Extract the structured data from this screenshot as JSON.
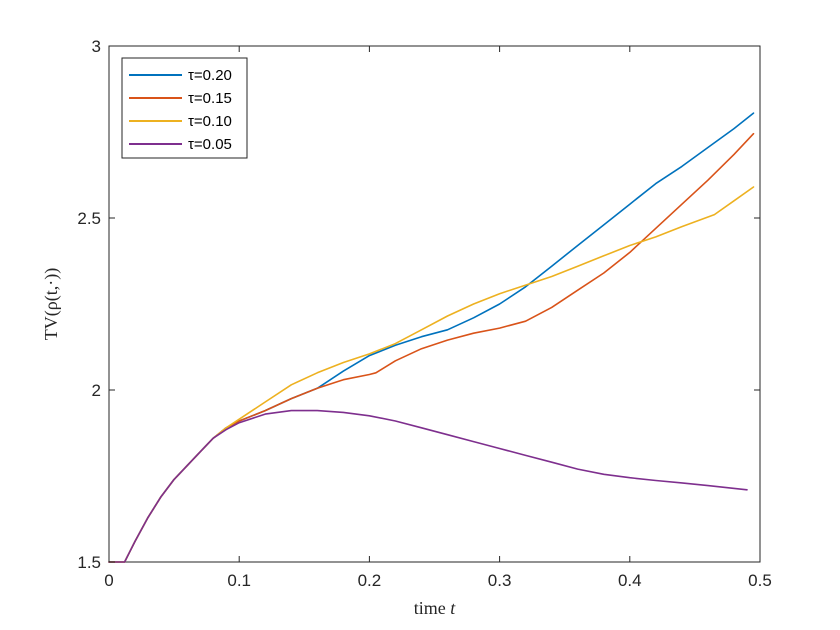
{
  "chart_data": {
    "type": "line",
    "xlabel": "time t",
    "ylabel": "TV(ρ(t,·))",
    "xlim": [
      0,
      0.5
    ],
    "ylim": [
      1.5,
      3
    ],
    "xticks": [
      0,
      0.1,
      0.2,
      0.3,
      0.4,
      0.5
    ],
    "xtick_labels": [
      "0",
      "0.1",
      "0.2",
      "0.3",
      "0.4",
      "0.5"
    ],
    "yticks": [
      1.5,
      2,
      2.5,
      3
    ],
    "ytick_labels": [
      "1.5",
      "2",
      "2.5",
      "3"
    ],
    "grid": false,
    "legend_position": "top-left",
    "series": [
      {
        "name": "τ=0.20",
        "color": "#0072BD",
        "x": [
          0,
          0.012,
          0.016,
          0.02,
          0.03,
          0.04,
          0.05,
          0.06,
          0.07,
          0.08,
          0.09,
          0.1,
          0.12,
          0.14,
          0.16,
          0.18,
          0.2,
          0.22,
          0.24,
          0.26,
          0.28,
          0.3,
          0.32,
          0.34,
          0.36,
          0.38,
          0.4,
          0.42,
          0.44,
          0.46,
          0.48,
          0.495
        ],
        "y": [
          1.5,
          1.5,
          1.53,
          1.56,
          1.63,
          1.69,
          1.74,
          1.78,
          1.82,
          1.86,
          1.89,
          1.91,
          1.94,
          1.975,
          2.005,
          2.055,
          2.1,
          2.13,
          2.155,
          2.175,
          2.21,
          2.25,
          2.3,
          2.36,
          2.42,
          2.48,
          2.54,
          2.6,
          2.65,
          2.705,
          2.76,
          2.805
        ]
      },
      {
        "name": "τ=0.15",
        "color": "#D95319",
        "x": [
          0,
          0.012,
          0.016,
          0.02,
          0.03,
          0.04,
          0.05,
          0.06,
          0.07,
          0.08,
          0.09,
          0.1,
          0.12,
          0.14,
          0.16,
          0.18,
          0.2,
          0.205,
          0.22,
          0.24,
          0.26,
          0.28,
          0.3,
          0.32,
          0.34,
          0.36,
          0.38,
          0.4,
          0.42,
          0.44,
          0.46,
          0.48,
          0.495
        ],
        "y": [
          1.5,
          1.5,
          1.53,
          1.56,
          1.63,
          1.69,
          1.74,
          1.78,
          1.82,
          1.86,
          1.89,
          1.91,
          1.94,
          1.975,
          2.005,
          2.03,
          2.045,
          2.05,
          2.085,
          2.12,
          2.145,
          2.165,
          2.18,
          2.2,
          2.24,
          2.29,
          2.34,
          2.4,
          2.47,
          2.54,
          2.61,
          2.685,
          2.745
        ]
      },
      {
        "name": "τ=0.10",
        "color": "#EDB120",
        "x": [
          0,
          0.012,
          0.016,
          0.02,
          0.03,
          0.04,
          0.05,
          0.06,
          0.07,
          0.08,
          0.09,
          0.1,
          0.12,
          0.14,
          0.16,
          0.18,
          0.2,
          0.22,
          0.24,
          0.26,
          0.28,
          0.3,
          0.32,
          0.34,
          0.36,
          0.38,
          0.4,
          0.42,
          0.44,
          0.465,
          0.48,
          0.495
        ],
        "y": [
          1.5,
          1.5,
          1.53,
          1.56,
          1.63,
          1.69,
          1.74,
          1.78,
          1.82,
          1.86,
          1.89,
          1.915,
          1.965,
          2.015,
          2.05,
          2.08,
          2.105,
          2.135,
          2.175,
          2.215,
          2.25,
          2.28,
          2.305,
          2.33,
          2.36,
          2.39,
          2.42,
          2.445,
          2.475,
          2.51,
          2.55,
          2.59
        ]
      },
      {
        "name": "τ=0.05",
        "color": "#7E2F8E",
        "x": [
          0,
          0.012,
          0.016,
          0.02,
          0.03,
          0.04,
          0.05,
          0.06,
          0.07,
          0.08,
          0.09,
          0.1,
          0.12,
          0.14,
          0.16,
          0.18,
          0.2,
          0.22,
          0.24,
          0.26,
          0.28,
          0.3,
          0.32,
          0.34,
          0.36,
          0.38,
          0.4,
          0.42,
          0.44,
          0.46,
          0.49
        ],
        "y": [
          1.5,
          1.5,
          1.53,
          1.56,
          1.63,
          1.69,
          1.74,
          1.78,
          1.82,
          1.86,
          1.885,
          1.905,
          1.93,
          1.94,
          1.94,
          1.935,
          1.925,
          1.91,
          1.89,
          1.87,
          1.85,
          1.83,
          1.81,
          1.79,
          1.77,
          1.755,
          1.745,
          1.737,
          1.73,
          1.722,
          1.71
        ]
      }
    ]
  }
}
